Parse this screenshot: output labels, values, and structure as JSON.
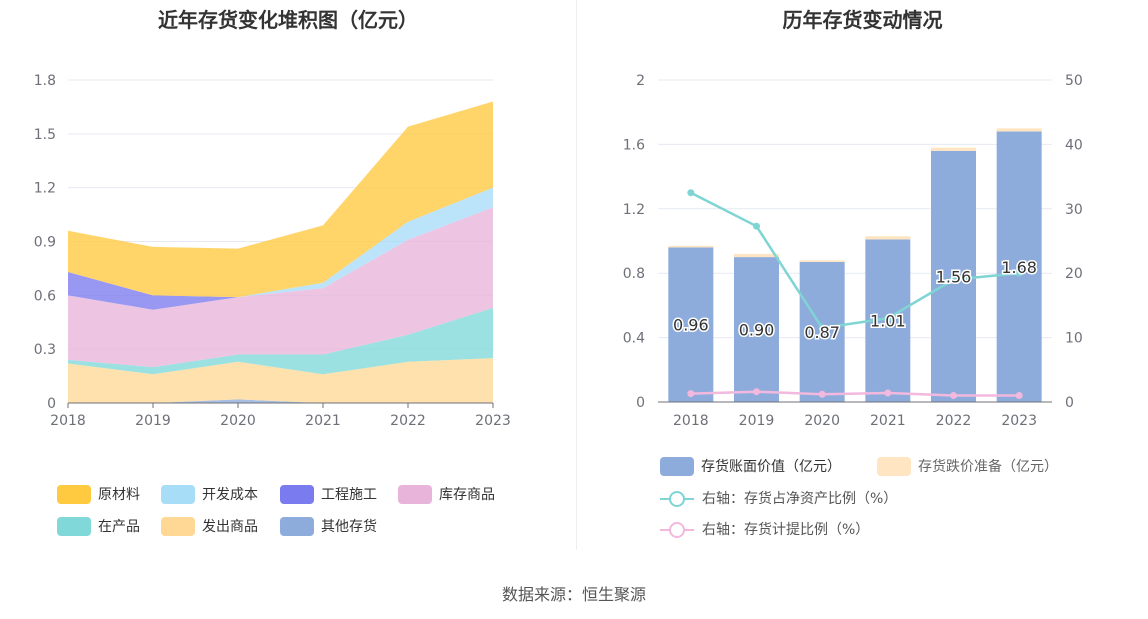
{
  "source": "数据来源：恒生聚源",
  "chart_data": [
    {
      "type": "area",
      "title": "近年存货变化堆积图（亿元）",
      "x": [
        "2018",
        "2019",
        "2020",
        "2021",
        "2022",
        "2023"
      ],
      "ylim": [
        0,
        1.8
      ],
      "yticks": [
        "0",
        "0.3",
        "0.6",
        "0.9",
        "1.2",
        "1.5",
        "1.8"
      ],
      "stacked": true,
      "series": [
        {
          "name": "原材料",
          "color": "#FFC940",
          "values": [
            0.23,
            0.27,
            0.27,
            0.32,
            0.53,
            0.48
          ]
        },
        {
          "name": "开发成本",
          "color": "#A8DDF8",
          "values": [
            0.0,
            0.0,
            0.0,
            0.03,
            0.1,
            0.11
          ]
        },
        {
          "name": "工程施工",
          "color": "#7B7BF0",
          "values": [
            0.13,
            0.08,
            0.0,
            0.0,
            0.0,
            0.0
          ]
        },
        {
          "name": "库存商品",
          "color": "#E8B4DA",
          "values": [
            0.36,
            0.32,
            0.32,
            0.37,
            0.53,
            0.56
          ]
        },
        {
          "name": "在产品",
          "color": "#80D8D8",
          "values": [
            0.02,
            0.04,
            0.04,
            0.11,
            0.15,
            0.28
          ]
        },
        {
          "name": "发出商品",
          "color": "#FFD896",
          "values": [
            0.22,
            0.16,
            0.21,
            0.16,
            0.23,
            0.25
          ]
        },
        {
          "name": "其他存货",
          "color": "#8EACDB",
          "values": [
            0.0,
            0.0,
            0.02,
            0.0,
            0.0,
            0.0
          ]
        }
      ],
      "legend_position": "bottom"
    },
    {
      "type": "bar",
      "title": "历年存货变动情况",
      "x": [
        "2018",
        "2019",
        "2020",
        "2021",
        "2022",
        "2023"
      ],
      "ylim_left": [
        0,
        2
      ],
      "yticks_left": [
        "0",
        "0.4",
        "0.8",
        "1.2",
        "1.6",
        "2"
      ],
      "ylim_right": [
        0,
        50
      ],
      "yticks_right": [
        "0",
        "10",
        "20",
        "30",
        "40",
        "50"
      ],
      "bar_series": [
        {
          "name": "存货账面价值（亿元）",
          "color": "#8EACDB",
          "values": [
            0.96,
            0.9,
            0.87,
            1.01,
            1.56,
            1.68
          ],
          "labels": [
            "0.96",
            "0.90",
            "0.87",
            "1.01",
            "1.56",
            "1.68"
          ]
        },
        {
          "name": "存货跌价准备（亿元）",
          "color": "#FFE5C2",
          "values": [
            0.01,
            0.02,
            0.01,
            0.02,
            0.02,
            0.02
          ]
        }
      ],
      "line_series": [
        {
          "name": "右轴：存货占净资产比例（%）",
          "color": "#7FD4D4",
          "axis": "right",
          "values": [
            32.5,
            27.3,
            11.5,
            13.0,
            19.0,
            20.0
          ]
        },
        {
          "name": "右轴：存货计提比例（%）",
          "color": "#F2B8DE",
          "axis": "right",
          "values": [
            1.3,
            1.6,
            1.2,
            1.4,
            1.0,
            1.0
          ]
        }
      ],
      "legend_position": "bottom"
    }
  ]
}
